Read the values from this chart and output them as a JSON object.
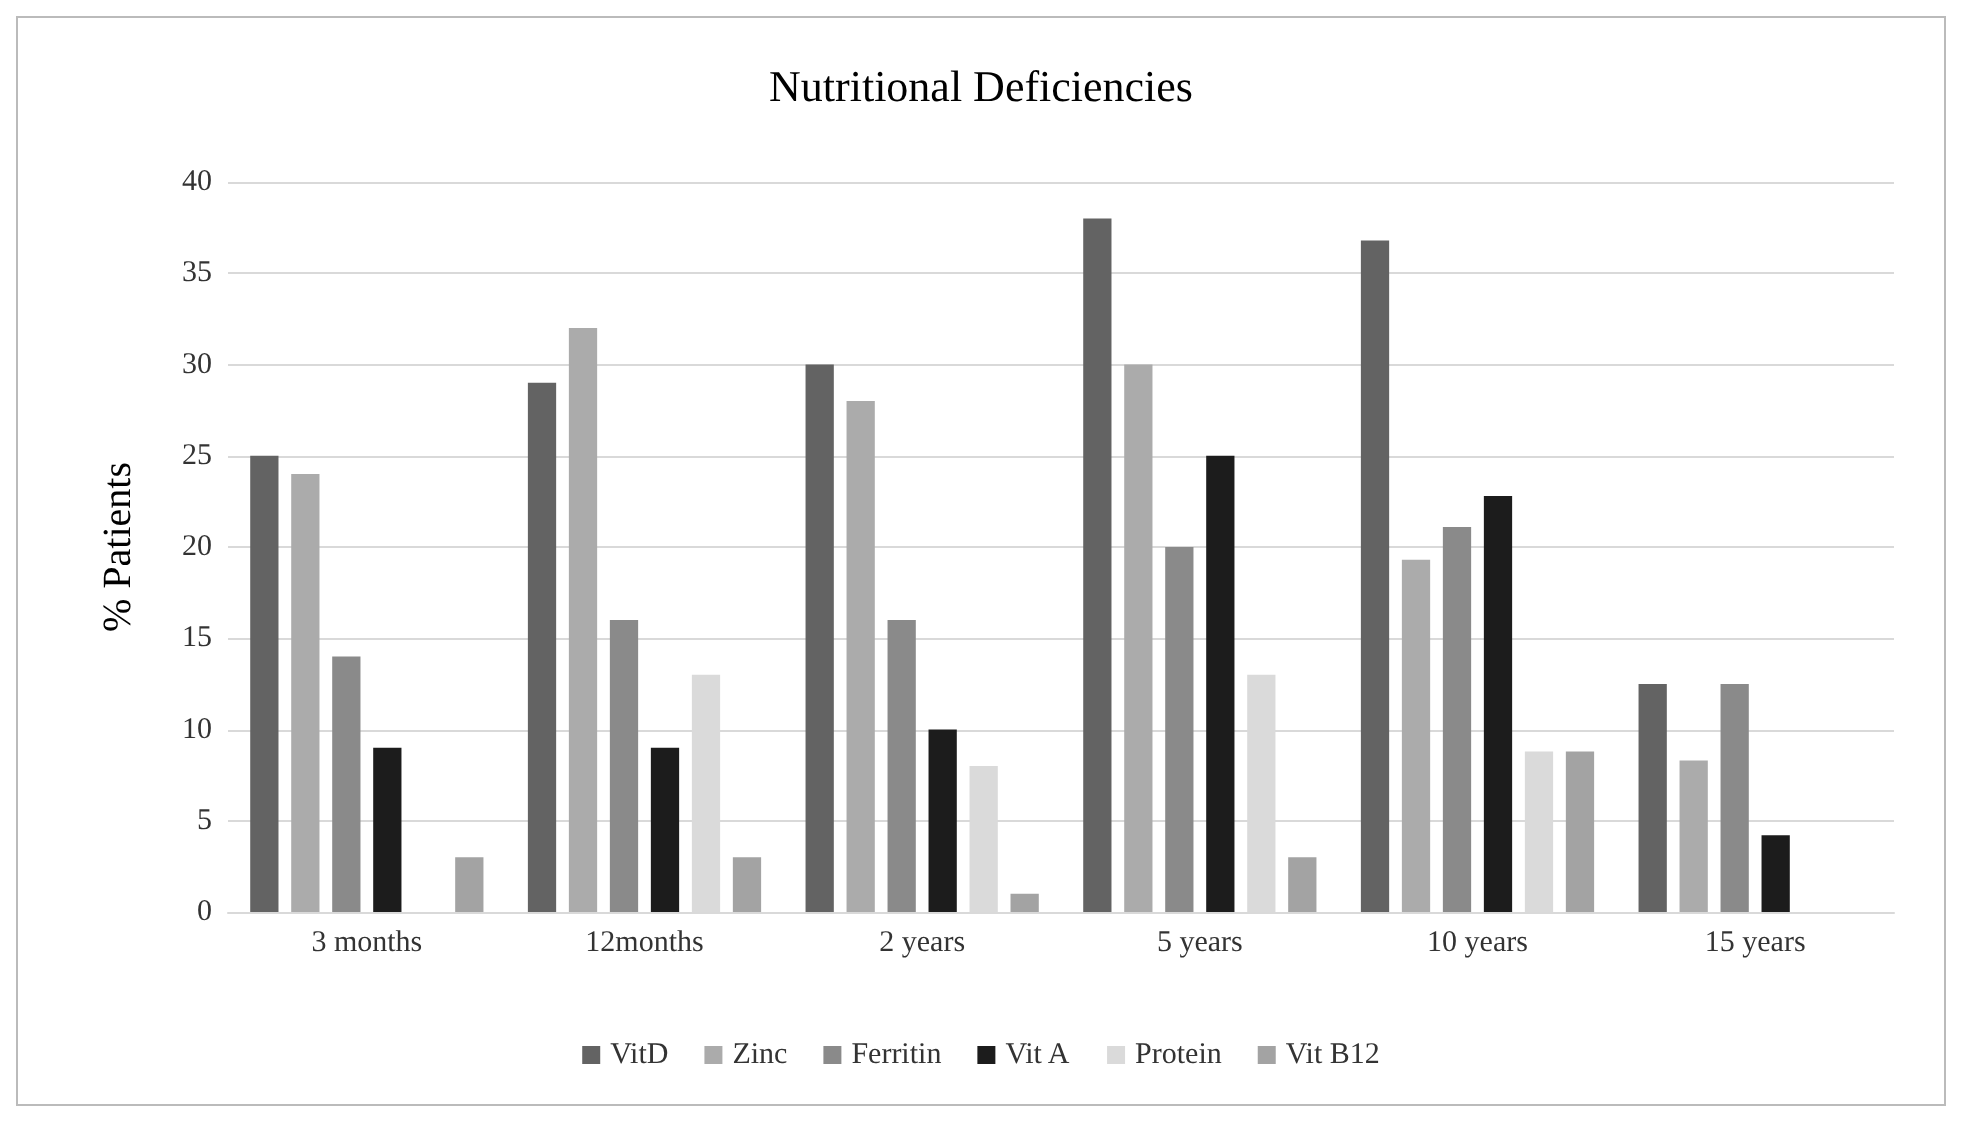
{
  "chart_data": {
    "type": "bar",
    "title": "Nutritional Deficiencies",
    "ylabel": "% Patients",
    "categories": [
      "3 months",
      "12months",
      "2 years",
      "5 years",
      "10 years",
      "15 years"
    ],
    "series": [
      {
        "name": "VitD",
        "color": "#636363",
        "values": [
          25,
          29,
          30,
          38,
          36.8,
          12.5
        ]
      },
      {
        "name": "Zinc",
        "color": "#ababab",
        "values": [
          24,
          32,
          28,
          30,
          19.3,
          8.3
        ]
      },
      {
        "name": "Ferritin",
        "color": "#8a8a8a",
        "values": [
          14,
          16,
          16,
          20,
          21.1,
          12.5
        ]
      },
      {
        "name": "Vit A",
        "color": "#1c1c1c",
        "values": [
          9,
          9,
          10,
          25,
          22.8,
          4.2
        ]
      },
      {
        "name": "Protein",
        "color": "#dadada",
        "values": [
          0,
          13,
          8,
          13,
          8.8,
          0
        ]
      },
      {
        "name": "Vit B12",
        "color": "#a3a3a3",
        "values": [
          3,
          3,
          1,
          3,
          8.8,
          0
        ]
      }
    ],
    "ylim": [
      0,
      40
    ],
    "yticks": [
      0,
      5,
      10,
      15,
      20,
      25,
      30,
      35,
      40
    ],
    "grid": "y",
    "legend": "bottom"
  }
}
